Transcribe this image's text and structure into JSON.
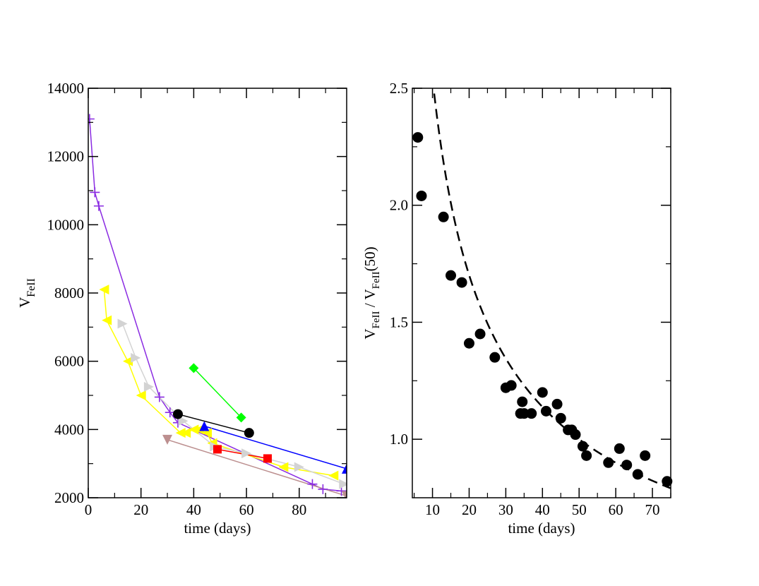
{
  "chart_data": [
    {
      "type": "line",
      "panel": "left",
      "xlabel": "time (days)",
      "ylabel": "V",
      "ylabel_sub": "FeII",
      "xlim": [
        0,
        98
      ],
      "ylim": [
        2000,
        14000
      ],
      "xticks": [
        0,
        20,
        40,
        60,
        80
      ],
      "yticks": [
        2000,
        4000,
        6000,
        8000,
        10000,
        12000,
        14000
      ],
      "series": [
        {
          "name": "purple",
          "color": "#8a2be2",
          "marker": "plus",
          "x": [
            0.5,
            2.5,
            4,
            27,
            31,
            34,
            85,
            89,
            96
          ],
          "y": [
            13100,
            10950,
            10550,
            4950,
            4500,
            4200,
            2400,
            2250,
            2200
          ]
        },
        {
          "name": "yellow",
          "color": "#ffff00",
          "marker": "triangle-left",
          "x": [
            6,
            7,
            15,
            20,
            35,
            37,
            40,
            42,
            45,
            47,
            74,
            93
          ],
          "y": [
            8100,
            7200,
            6000,
            5000,
            3900,
            3900,
            4000,
            4000,
            3900,
            3600,
            2900,
            2650
          ]
        },
        {
          "name": "gray",
          "color": "#d3d3d3",
          "marker": "triangle-right",
          "x": [
            13,
            18,
            23,
            36,
            48,
            60,
            80,
            97
          ],
          "y": [
            7100,
            6100,
            5250,
            4250,
            3500,
            3300,
            2900,
            2400
          ]
        },
        {
          "name": "green",
          "color": "#00ff00",
          "marker": "diamond",
          "x": [
            40,
            58
          ],
          "y": [
            5800,
            4350
          ]
        },
        {
          "name": "black",
          "color": "#000000",
          "marker": "circle",
          "x": [
            34,
            61
          ],
          "y": [
            4450,
            3900
          ]
        },
        {
          "name": "blue",
          "color": "#0000ff",
          "marker": "triangle-up",
          "x": [
            44,
            98
          ],
          "y": [
            4100,
            2850
          ]
        },
        {
          "name": "red",
          "color": "#ff0000",
          "marker": "square",
          "x": [
            49,
            68
          ],
          "y": [
            3420,
            3150
          ]
        },
        {
          "name": "brown",
          "color": "#bc8f8f",
          "marker": "triangle-down",
          "x": [
            30,
            98
          ],
          "y": [
            3700,
            2050
          ]
        }
      ]
    },
    {
      "type": "scatter",
      "panel": "right",
      "xlabel": "time (days)",
      "ylabel_parts": [
        "V",
        "FeII",
        " / V",
        "FeII",
        "(50)"
      ],
      "xlim": [
        4.5,
        75
      ],
      "ylim": [
        0.75,
        2.5
      ],
      "xticks": [
        10,
        20,
        30,
        40,
        50,
        60,
        70
      ],
      "yticks": [
        1.0,
        1.5,
        2.0,
        2.5
      ],
      "yticklabels": [
        "1.0",
        "1.5",
        "2.0",
        "2.5"
      ],
      "points": {
        "x": [
          6,
          7,
          13,
          15,
          18,
          20,
          23,
          27,
          30,
          31.5,
          34,
          34.5,
          35,
          37,
          40,
          41,
          44,
          45,
          47,
          48,
          49,
          51,
          52,
          58,
          61,
          63,
          66,
          68,
          74
        ],
        "y": [
          2.29,
          2.04,
          1.95,
          1.7,
          1.67,
          1.41,
          1.45,
          1.35,
          1.22,
          1.23,
          1.11,
          1.16,
          1.11,
          1.11,
          1.2,
          1.12,
          1.15,
          1.09,
          1.04,
          1.04,
          1.02,
          0.97,
          0.93,
          0.9,
          0.96,
          0.89,
          0.85,
          0.93,
          0.82
        ]
      },
      "fit": {
        "style": "dashed",
        "form": "power-law",
        "amplitude": 1.0,
        "reference": 50,
        "exponent": -0.58
      }
    }
  ]
}
